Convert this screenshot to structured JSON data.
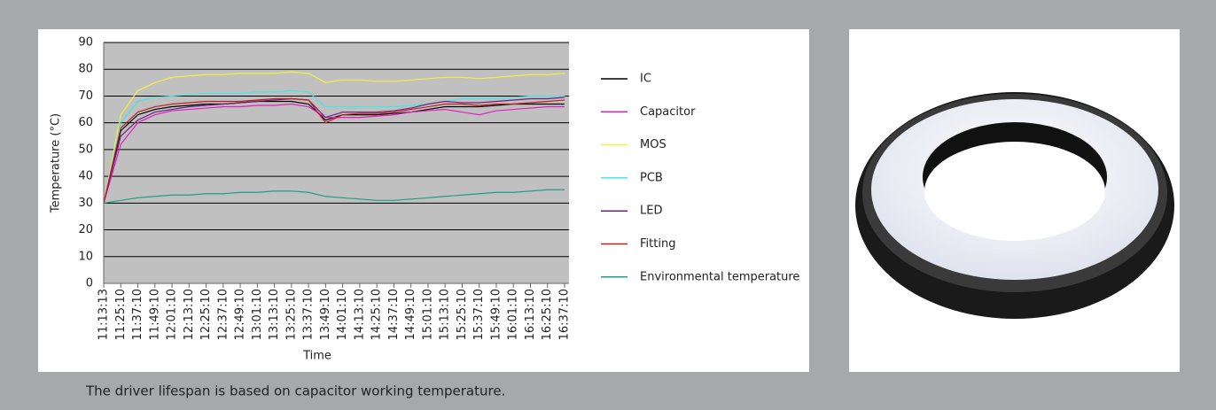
{
  "chart_data": {
    "type": "line",
    "y_axis_label": "Temperature (°C)",
    "x_axis_label": "Time",
    "categories": [
      "11:13:13",
      "11:25:10",
      "11:37:10",
      "11:49:10",
      "12:01:10",
      "12:13:10",
      "12:25:10",
      "12:37:10",
      "12:49:10",
      "13:01:10",
      "13:13:10",
      "13:25:10",
      "13:37:10",
      "13:49:10",
      "14:01:10",
      "14:13:10",
      "14:25:10",
      "14:37:10",
      "14:49:10",
      "15:01:10",
      "15:13:10",
      "15:25:10",
      "15:37:10",
      "15:49:10",
      "16:01:10",
      "16:13:10",
      "16:25:10",
      "16:37:10"
    ],
    "ylim": [
      0,
      90
    ],
    "yticks": [
      0,
      10,
      20,
      30,
      40,
      50,
      60,
      70,
      80,
      90
    ],
    "grid": true,
    "series": [
      {
        "name": "IC",
        "color": "#000000",
        "values": [
          30,
          57,
          63,
          65,
          66,
          66.5,
          67,
          67,
          67.5,
          68,
          68,
          68,
          67,
          61,
          63,
          63,
          63,
          63.5,
          64,
          65,
          66,
          66,
          66,
          66.5,
          67,
          67,
          67,
          67
        ]
      },
      {
        "name": "Capacitor",
        "color": "#e020c0",
        "values": [
          30,
          52,
          60,
          63,
          64.5,
          65,
          65.5,
          66,
          66,
          66.5,
          66.5,
          67,
          66,
          62,
          62,
          62,
          62.5,
          63,
          64,
          64.5,
          65,
          64,
          63,
          64.5,
          65,
          65.5,
          66,
          66
        ]
      },
      {
        "name": "MOS",
        "color": "#f0f040",
        "values": [
          30,
          63,
          72,
          75,
          77,
          77.5,
          78,
          78,
          78.5,
          78.5,
          78.5,
          79,
          78.5,
          75,
          76,
          76,
          75.5,
          75.5,
          76,
          76.5,
          77,
          77,
          76.5,
          77,
          77.5,
          78,
          78,
          78.5
        ]
      },
      {
        "name": "PCB",
        "color": "#40e8e8",
        "values": [
          30,
          60,
          68,
          69.5,
          70,
          70.5,
          71,
          71,
          71,
          71.5,
          71.5,
          72,
          71.5,
          66,
          66,
          66,
          66,
          66,
          66.5,
          67,
          68,
          69,
          69,
          69,
          69.5,
          70,
          70,
          70
        ]
      },
      {
        "name": "LED",
        "color": "#702080",
        "values": [
          30,
          55,
          61,
          64,
          65,
          66,
          66.5,
          67,
          67.5,
          68,
          68.5,
          69,
          68.5,
          62,
          64,
          64,
          64,
          64.5,
          65.5,
          67,
          68,
          67.5,
          67.5,
          68,
          68.5,
          69,
          69,
          69.5
        ]
      },
      {
        "name": "Fitting",
        "color": "#c02020",
        "values": [
          30,
          58,
          64,
          66,
          67,
          67.5,
          68,
          68,
          68,
          68.5,
          69,
          69,
          68.5,
          60,
          63,
          63.5,
          63.5,
          64,
          65,
          66,
          67,
          67,
          66.5,
          67,
          67,
          67.5,
          68,
          68.5
        ]
      },
      {
        "name": "Environmental temperature",
        "color": "#20a080",
        "values": [
          30,
          31,
          32,
          32.5,
          33,
          33,
          33.5,
          33.5,
          34,
          34,
          34.5,
          34.5,
          34,
          32.5,
          32,
          31.5,
          31,
          31,
          31.5,
          32,
          32.5,
          33,
          33.5,
          34,
          34,
          34.5,
          35,
          35
        ]
      }
    ]
  },
  "caption": "The driver lifespan is based on capacitor working temperature."
}
